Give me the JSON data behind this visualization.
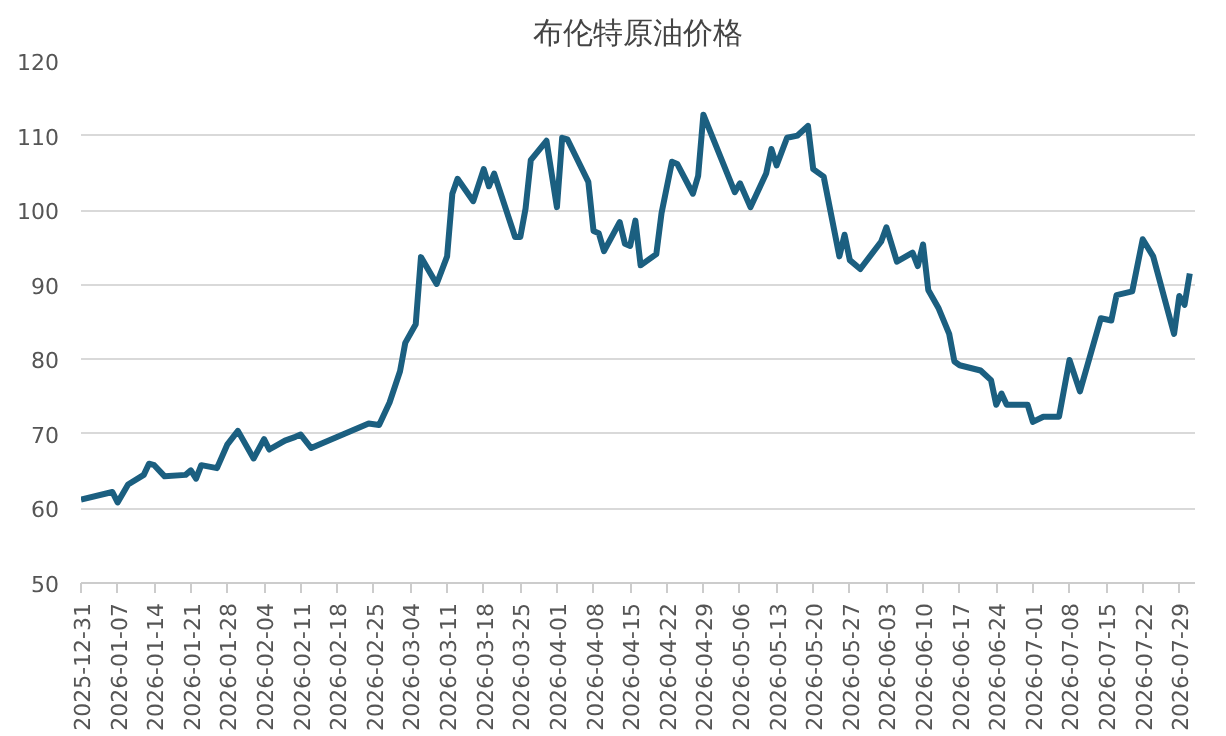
{
  "chart_data": {
    "type": "line",
    "title": "布伦特原油价格",
    "x": [
      "2025-12-31",
      "2026-01-06",
      "2026-01-07",
      "2026-01-09",
      "2026-01-12",
      "2026-01-13",
      "2026-01-14",
      "2026-01-16",
      "2026-01-20",
      "2026-01-21",
      "2026-01-22",
      "2026-01-23",
      "2026-01-26",
      "2026-01-28",
      "2026-01-30",
      "2026-02-02",
      "2026-02-04",
      "2026-02-05",
      "2026-02-08",
      "2026-02-10",
      "2026-02-11",
      "2026-02-13",
      "2026-02-24",
      "2026-02-26",
      "2026-02-28",
      "2026-03-02",
      "2026-03-03",
      "2026-03-05",
      "2026-03-06",
      "2026-03-09",
      "2026-03-11",
      "2026-03-12",
      "2026-03-13",
      "2026-03-16",
      "2026-03-18",
      "2026-03-19",
      "2026-03-20",
      "2026-03-24",
      "2026-03-25",
      "2026-03-26",
      "2026-03-27",
      "2026-03-30",
      "2026-04-01",
      "2026-04-02",
      "2026-04-03",
      "2026-04-07",
      "2026-04-08",
      "2026-04-09",
      "2026-04-10",
      "2026-04-13",
      "2026-04-14",
      "2026-04-15",
      "2026-04-16",
      "2026-04-17",
      "2026-04-20",
      "2026-04-21",
      "2026-04-23",
      "2026-04-24",
      "2026-04-27",
      "2026-04-28",
      "2026-04-29",
      "2026-05-05",
      "2026-05-06",
      "2026-05-08",
      "2026-05-11",
      "2026-05-12",
      "2026-05-13",
      "2026-05-15",
      "2026-05-17",
      "2026-05-19",
      "2026-05-20",
      "2026-05-22",
      "2026-05-25",
      "2026-05-26",
      "2026-05-27",
      "2026-05-29",
      "2026-06-02",
      "2026-06-03",
      "2026-06-05",
      "2026-06-08",
      "2026-06-09",
      "2026-06-10",
      "2026-06-11",
      "2026-06-13",
      "2026-06-15",
      "2026-06-16",
      "2026-06-17",
      "2026-06-21",
      "2026-06-23",
      "2026-06-24",
      "2026-06-25",
      "2026-06-26",
      "2026-06-30",
      "2026-07-01",
      "2026-07-03",
      "2026-07-06",
      "2026-07-08",
      "2026-07-10",
      "2026-07-14",
      "2026-07-16",
      "2026-07-17",
      "2026-07-20",
      "2026-07-22",
      "2026-07-24",
      "2026-07-28",
      "2026-07-29",
      "2026-07-30",
      "2026-07-31"
    ],
    "series": [
      {
        "color": "#1b5f80",
        "values": [
          61.2,
          62.2,
          60.8,
          63.2,
          64.5,
          66.0,
          65.8,
          64.3,
          64.5,
          65.1,
          64.0,
          65.8,
          65.4,
          68.6,
          70.4,
          66.7,
          69.3,
          67.9,
          69.1,
          69.6,
          69.9,
          68.1,
          71.4,
          71.2,
          74.2,
          78.4,
          82.2,
          84.7,
          93.7,
          90.1,
          93.8,
          102.2,
          104.2,
          101.2,
          105.5,
          103.2,
          104.9,
          96.4,
          96.4,
          100.2,
          106.7,
          109.3,
          100.4,
          109.7,
          109.5,
          103.8,
          97.2,
          96.9,
          94.5,
          98.4,
          95.5,
          95.2,
          98.6,
          92.6,
          94.1,
          99.6,
          106.5,
          106.2,
          102.2,
          104.6,
          112.8,
          102.4,
          103.6,
          100.4,
          104.9,
          108.2,
          106.0,
          109.7,
          110.0,
          111.3,
          105.5,
          104.5,
          93.8,
          96.7,
          93.3,
          92.1,
          95.8,
          97.7,
          93.1,
          94.3,
          92.5,
          95.4,
          89.3,
          86.8,
          83.4,
          79.7,
          79.2,
          78.5,
          77.2,
          73.9,
          75.4,
          73.9,
          73.9,
          71.6,
          72.3,
          72.3,
          79.9,
          75.7,
          85.5,
          85.2,
          88.6,
          89.1,
          96.1,
          93.8,
          83.4,
          88.5,
          87.3,
          91.5
        ]
      }
    ],
    "xlim": [
      "2025-12-31",
      "2026-08-01"
    ],
    "xticks": [
      "2025-12-31",
      "2026-01-07",
      "2026-01-14",
      "2026-01-21",
      "2026-01-28",
      "2026-02-04",
      "2026-02-11",
      "2026-02-18",
      "2026-02-25",
      "2026-03-04",
      "2026-03-11",
      "2026-03-18",
      "2026-03-25",
      "2026-04-01",
      "2026-04-08",
      "2026-04-15",
      "2026-04-22",
      "2026-04-29",
      "2026-05-06",
      "2026-05-13",
      "2026-05-20",
      "2026-05-27",
      "2026-06-03",
      "2026-06-10",
      "2026-06-17",
      "2026-06-24",
      "2026-07-01",
      "2026-07-08",
      "2026-07-15",
      "2026-07-22",
      "2026-07-29"
    ],
    "ylim": [
      50,
      120
    ],
    "yticks": [
      50,
      60,
      70,
      80,
      90,
      100,
      110,
      120
    ],
    "grid": "y",
    "marker": "none",
    "line_style": "solid"
  }
}
